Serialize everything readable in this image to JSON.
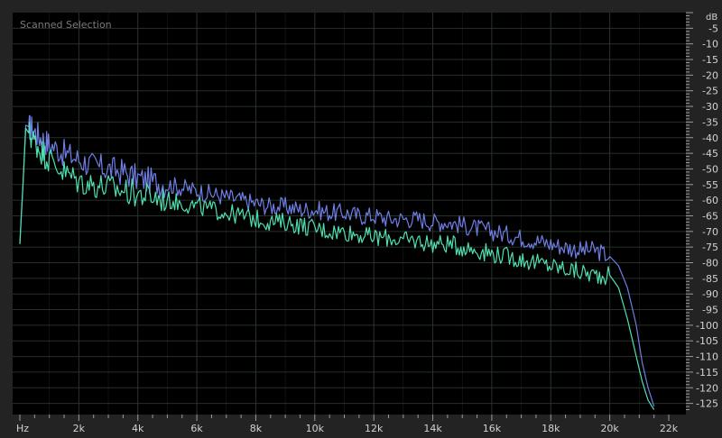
{
  "chart_data": {
    "type": "line",
    "title": "Scanned Selection",
    "x_unit_label": "Hz",
    "y_unit_label": "dB",
    "xlim": [
      0,
      22000
    ],
    "ylim": [
      -128,
      0
    ],
    "x_ticks": [
      {
        "value": 2000,
        "label": "2k"
      },
      {
        "value": 4000,
        "label": "4k"
      },
      {
        "value": 6000,
        "label": "6k"
      },
      {
        "value": 8000,
        "label": "8k"
      },
      {
        "value": 10000,
        "label": "10k"
      },
      {
        "value": 12000,
        "label": "12k"
      },
      {
        "value": 14000,
        "label": "14k"
      },
      {
        "value": 16000,
        "label": "16k"
      },
      {
        "value": 18000,
        "label": "18k"
      },
      {
        "value": 20000,
        "label": "20k"
      },
      {
        "value": 22000,
        "label": "22k"
      }
    ],
    "y_ticks": [
      {
        "value": -5,
        "label": "-5"
      },
      {
        "value": -10,
        "label": "-10"
      },
      {
        "value": -15,
        "label": "-15"
      },
      {
        "value": -20,
        "label": "-20"
      },
      {
        "value": -25,
        "label": "-25"
      },
      {
        "value": -30,
        "label": "-30"
      },
      {
        "value": -35,
        "label": "-35"
      },
      {
        "value": -40,
        "label": "-40"
      },
      {
        "value": -45,
        "label": "-45"
      },
      {
        "value": -50,
        "label": "-50"
      },
      {
        "value": -55,
        "label": "-55"
      },
      {
        "value": -60,
        "label": "-60"
      },
      {
        "value": -65,
        "label": "-65"
      },
      {
        "value": -70,
        "label": "-70"
      },
      {
        "value": -75,
        "label": "-75"
      },
      {
        "value": -80,
        "label": "-80"
      },
      {
        "value": -85,
        "label": "-85"
      },
      {
        "value": -90,
        "label": "-90"
      },
      {
        "value": -95,
        "label": "-95"
      },
      {
        "value": -100,
        "label": "-100"
      },
      {
        "value": -105,
        "label": "-105"
      },
      {
        "value": -110,
        "label": "-110"
      },
      {
        "value": -115,
        "label": "-115"
      },
      {
        "value": -120,
        "label": "-120"
      },
      {
        "value": -125,
        "label": "-125"
      }
    ],
    "grid": true,
    "colors": {
      "background": "#000000",
      "grid": "#2e3a2e",
      "frame": "#232323",
      "labels": "#d2d2d2",
      "title": "#7a7a7a"
    },
    "series": [
      {
        "color": "#6f7fe6",
        "x": [
          0,
          100,
          200,
          400,
          700,
          1000,
          1500,
          2000,
          2500,
          3000,
          3500,
          4000,
          4500,
          5000,
          5500,
          6000,
          6500,
          7000,
          7500,
          8000,
          8500,
          9000,
          9500,
          10000,
          10500,
          11000,
          11500,
          12000,
          12500,
          13000,
          13500,
          14000,
          14500,
          15000,
          15500,
          16000,
          16500,
          17000,
          17500,
          18000,
          18500,
          19000,
          19500,
          20000,
          20300,
          20600,
          20900,
          21100,
          21300,
          21500
        ],
        "y": [
          -74,
          -56,
          -36,
          -37,
          -40,
          -42,
          -45,
          -47,
          -49,
          -50,
          -51,
          -53,
          -54,
          -55,
          -56,
          -57,
          -58,
          -59,
          -60,
          -61,
          -62,
          -62,
          -63,
          -63,
          -64,
          -64,
          -65,
          -65,
          -66,
          -66,
          -66,
          -67,
          -67,
          -68,
          -69,
          -70,
          -71,
          -72,
          -73,
          -74,
          -75,
          -76,
          -76,
          -78,
          -81,
          -88,
          -100,
          -112,
          -120,
          -126
        ]
      },
      {
        "color": "#4fe0b0",
        "x": [
          0,
          100,
          200,
          400,
          700,
          1000,
          1500,
          2000,
          2500,
          3000,
          3500,
          4000,
          4500,
          5000,
          5500,
          6000,
          6500,
          7000,
          7500,
          8000,
          8500,
          9000,
          9500,
          10000,
          10500,
          11000,
          11500,
          12000,
          12500,
          13000,
          13500,
          14000,
          14500,
          15000,
          15500,
          16000,
          16500,
          17000,
          17500,
          18000,
          18500,
          19000,
          19500,
          20000,
          20300,
          20600,
          20900,
          21100,
          21300,
          21500
        ],
        "y": [
          -74,
          -56,
          -37,
          -40,
          -44,
          -47,
          -51,
          -54,
          -55,
          -56,
          -57,
          -58,
          -59,
          -60,
          -61,
          -62,
          -63,
          -64,
          -65,
          -66,
          -67,
          -67,
          -68,
          -69,
          -70,
          -70,
          -71,
          -72,
          -72,
          -73,
          -73,
          -74,
          -74,
          -75,
          -76,
          -77,
          -78,
          -79,
          -80,
          -81,
          -82,
          -83,
          -84,
          -84,
          -88,
          -98,
          -110,
          -118,
          -124,
          -127
        ]
      }
    ]
  }
}
